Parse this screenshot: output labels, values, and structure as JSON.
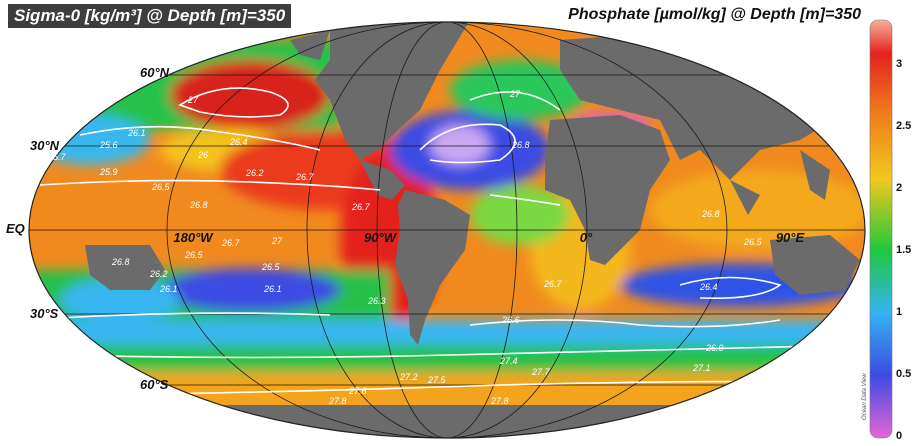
{
  "titles": {
    "left": "Sigma-0 [kg/m³] @ Depth [m]=350",
    "right": "Phosphate [µmol/kg] @ Depth [m]=350"
  },
  "latitude_labels": [
    "60°N",
    "30°N",
    "EQ",
    "30°S",
    "60°S"
  ],
  "longitude_labels": [
    "180°W",
    "90°W",
    "0°",
    "90°E"
  ],
  "colorbar": {
    "ticks": [
      "3",
      "2.5",
      "2",
      "1.5",
      "1",
      "0.5",
      "0"
    ],
    "brand": "Ocean Data View",
    "colors": [
      "#e765d6",
      "#3b4be3",
      "#33b4f3",
      "#1fc83b",
      "#f2c81c",
      "#f07a1a",
      "#e4231e",
      "#f8b09a"
    ]
  },
  "contour_labels": [
    {
      "text": "27"
    },
    {
      "text": "26.1"
    },
    {
      "text": "25.6"
    },
    {
      "text": "25.7"
    },
    {
      "text": "26"
    },
    {
      "text": "26.4"
    },
    {
      "text": "25.9"
    },
    {
      "text": "26.2"
    },
    {
      "text": "26.5"
    },
    {
      "text": "26.7"
    },
    {
      "text": "26.8"
    },
    {
      "text": "26.7"
    },
    {
      "text": "26.7"
    },
    {
      "text": "27"
    },
    {
      "text": "26.5"
    },
    {
      "text": "26.8"
    },
    {
      "text": "27"
    },
    {
      "text": "26.8"
    },
    {
      "text": "26.8"
    },
    {
      "text": "26.5"
    },
    {
      "text": "26.4"
    },
    {
      "text": "26.7"
    },
    {
      "text": "26.6"
    },
    {
      "text": "26.9"
    },
    {
      "text": "27.1"
    },
    {
      "text": "27.4"
    },
    {
      "text": "27.7"
    },
    {
      "text": "27.5"
    },
    {
      "text": "27.6"
    },
    {
      "text": "27.2"
    },
    {
      "text": "27.8"
    },
    {
      "text": "27.8"
    },
    {
      "text": "26.2"
    },
    {
      "text": "26.1"
    },
    {
      "text": "26.5"
    },
    {
      "text": "26.1"
    },
    {
      "text": "26.3"
    }
  ]
}
